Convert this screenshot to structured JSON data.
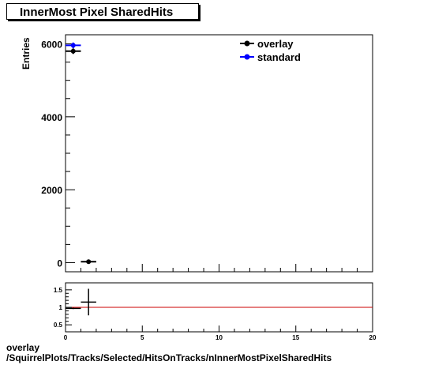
{
  "title": "InnerMost Pixel SharedHits",
  "footer": {
    "line1": "overlay",
    "line2": "/SquirrelPlots/Tracks/Selected/HitsOnTracks/nInnerMostPixelSharedHits"
  },
  "chart_data": [
    {
      "type": "scatter",
      "ylabel": "Entries",
      "xlim": [
        0,
        20
      ],
      "ylim": [
        -250,
        6250
      ],
      "yticks": [
        0,
        2000,
        4000,
        6000
      ],
      "grid": false,
      "legend_position": "top-right",
      "series": [
        {
          "name": "overlay",
          "color": "#000000",
          "points": [
            {
              "x": 0.5,
              "y": 5800,
              "xerr": 0.5,
              "yerr": 76
            },
            {
              "x": 1.5,
              "y": 25,
              "xerr": 0.5,
              "yerr": 5
            }
          ]
        },
        {
          "name": "standard",
          "color": "#0000ff",
          "points": [
            {
              "x": 0.5,
              "y": 5960,
              "xerr": 0.5,
              "yerr": 77
            }
          ]
        }
      ]
    },
    {
      "type": "scatter",
      "xlim": [
        0,
        20
      ],
      "ylim": [
        0.3,
        1.7
      ],
      "yticks": [
        0.5,
        1,
        1.5
      ],
      "xticks": [
        0,
        5,
        10,
        15,
        20
      ],
      "reference_line": {
        "y": 1.0,
        "color": "#cc0000"
      },
      "points": [
        {
          "x": 0.5,
          "y": 0.97,
          "xerr": 0.5,
          "yerr": 0.02
        },
        {
          "x": 1.5,
          "y": 1.15,
          "xerr": 0.5,
          "yerr": 0.38
        }
      ]
    }
  ]
}
